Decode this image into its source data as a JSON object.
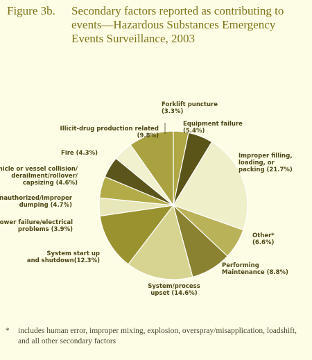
{
  "figure": {
    "label": "Figure 3b.",
    "title": "Secondary factors reported as contributing to events—Hazardous Substances Emergency Events Surveillance, 2003"
  },
  "chart_data": {
    "type": "pie",
    "slices": [
      {
        "label_lines": [
          "Forklift puncture",
          "(3.3%)"
        ],
        "value": 3.3,
        "color": "#afa844"
      },
      {
        "label_lines": [
          "Equipment failure",
          "(5.4%)"
        ],
        "value": 5.4,
        "color": "#5a5418"
      },
      {
        "label_lines": [
          "Improper filling,",
          "loading, or",
          "packing (21.7%)"
        ],
        "value": 21.7,
        "color": "#efefca"
      },
      {
        "label_lines": [
          "Other*",
          "(6.6%)"
        ],
        "value": 6.6,
        "color": "#bab258"
      },
      {
        "label_lines": [
          "Performing",
          "Maintenance (8.8%)"
        ],
        "value": 8.8,
        "color": "#8a8230"
      },
      {
        "label_lines": [
          "System/process",
          "upset (14.6%)"
        ],
        "value": 14.6,
        "color": "#d7d491"
      },
      {
        "label_lines": [
          "System start up",
          "and shutdown(12.3%)"
        ],
        "value": 12.3,
        "color": "#9a922f"
      },
      {
        "label_lines": [
          "Power failure/electrical",
          "problems (3.9%)"
        ],
        "value": 3.9,
        "color": "#e8e7b9"
      },
      {
        "label_lines": [
          "Unauthorized/improper",
          "dumping (4.7%)"
        ],
        "value": 4.7,
        "color": "#b3ab48"
      },
      {
        "label_lines": [
          "Vehicle or vessel collision/",
          "derailment/rollover/",
          "capsizing (4.6%)"
        ],
        "value": 4.6,
        "color": "#5b551c"
      },
      {
        "label_lines": [
          "Fire (4.3%)"
        ],
        "value": 4.3,
        "color": "#f1f0cf"
      },
      {
        "label_lines": [
          "Illicit-drug production related",
          "(9.8%)"
        ],
        "value": 9.8,
        "color": "#aaa241"
      }
    ],
    "stroke_color": "#ffffff"
  },
  "footnote": {
    "mark": "*",
    "text": "includes human error, improper mixing, explosion, overspray/misapplication, loadshift, and all other secondary factors"
  }
}
